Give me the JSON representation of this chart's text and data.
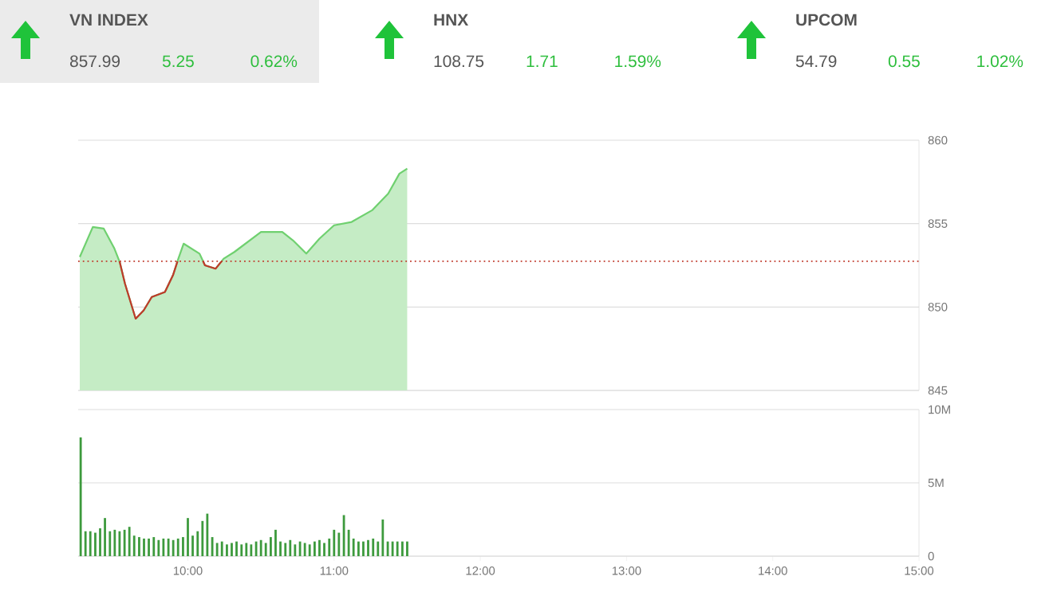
{
  "chart_data": [
    {
      "type": "other",
      "annotations": [
        "VN INDEX",
        "857.99",
        "5.25",
        "0.62%",
        "HNX",
        "108.75",
        "1.71",
        "1.59%",
        "UPCOM",
        "54.79",
        "0.55",
        "1.02%"
      ]
    },
    {
      "type": "area",
      "xlim": [
        9.25,
        15
      ],
      "ylim": [
        845,
        860
      ],
      "yticks": [
        845,
        850,
        855,
        860
      ],
      "grid": "y",
      "tick_labels": "y",
      "series": [
        {
          "color": "#6fd06f",
          "x": [
            9.261,
            9.35,
            9.425,
            9.498,
            9.534,
            9.57,
            9.643,
            9.698,
            9.753,
            9.843,
            9.898,
            9.935,
            9.971,
            10.08,
            10.117,
            10.19,
            10.245,
            10.318,
            10.5,
            10.646,
            10.718,
            10.81,
            10.9,
            11.0,
            11.12,
            11.26,
            11.37,
            11.447,
            11.5
          ],
          "values": [
            853.0,
            854.8,
            854.7,
            853.5,
            852.7,
            851.4,
            849.3,
            849.8,
            850.6,
            850.9,
            851.9,
            852.9,
            853.8,
            853.2,
            852.5,
            852.3,
            852.9,
            853.3,
            854.5,
            854.5,
            854.0,
            853.2,
            854.1,
            854.9,
            855.1,
            855.8,
            856.8,
            858.0,
            858.3
          ]
        }
      ],
      "ref_lines": [
        {
          "axis": "y",
          "value": 852.74,
          "color": "#c0392b",
          "line_style": "dotted"
        }
      ]
    },
    {
      "type": "bar",
      "xlim": [
        9.25,
        15
      ],
      "ylim": [
        0,
        10
      ],
      "yticks": [
        0,
        {
          "value": 5,
          "label": "5M"
        },
        {
          "value": 10,
          "label": "10M"
        }
      ],
      "xticks": [
        {
          "value": 10,
          "label": "10:00"
        },
        {
          "value": 11,
          "label": "11:00"
        },
        {
          "value": 12,
          "label": "12:00"
        },
        {
          "value": 13,
          "label": "13:00"
        },
        {
          "value": 14,
          "label": "14:00"
        },
        {
          "value": 15,
          "label": "15:00"
        }
      ],
      "grid": "y",
      "series": [
        {
          "color": "#3d9a3d",
          "x": [
            9.267,
            9.3,
            9.333,
            9.367,
            9.4,
            9.433,
            9.467,
            9.5,
            9.533,
            9.567,
            9.6,
            9.633,
            9.667,
            9.7,
            9.733,
            9.767,
            9.8,
            9.833,
            9.867,
            9.9,
            9.933,
            9.967,
            10.0,
            10.033,
            10.067,
            10.1,
            10.133,
            10.167,
            10.2,
            10.233,
            10.267,
            10.3,
            10.333,
            10.367,
            10.4,
            10.433,
            10.467,
            10.5,
            10.533,
            10.567,
            10.6,
            10.633,
            10.667,
            10.7,
            10.733,
            10.767,
            10.8,
            10.833,
            10.867,
            10.9,
            10.933,
            10.967,
            11.0,
            11.033,
            11.067,
            11.1,
            11.133,
            11.167,
            11.2,
            11.233,
            11.267,
            11.3,
            11.333,
            11.367,
            11.4,
            11.433,
            11.467,
            11.5
          ],
          "values": [
            8.1,
            1.7,
            1.7,
            1.6,
            1.9,
            2.6,
            1.7,
            1.8,
            1.7,
            1.8,
            2.0,
            1.4,
            1.3,
            1.2,
            1.2,
            1.3,
            1.1,
            1.2,
            1.2,
            1.1,
            1.2,
            1.3,
            2.6,
            1.4,
            1.7,
            2.4,
            2.9,
            1.3,
            0.9,
            1.0,
            0.8,
            0.9,
            1.0,
            0.8,
            0.9,
            0.8,
            1.0,
            1.1,
            0.9,
            1.3,
            1.8,
            1.0,
            0.9,
            1.1,
            0.8,
            1.0,
            0.9,
            0.8,
            1.0,
            1.1,
            0.9,
            1.2,
            1.8,
            1.6,
            2.8,
            1.8,
            1.2,
            1.0,
            1.0,
            1.1,
            1.2,
            1.0,
            2.5,
            1.0,
            1.0,
            1.0,
            1.0,
            1.0
          ]
        }
      ]
    }
  ]
}
